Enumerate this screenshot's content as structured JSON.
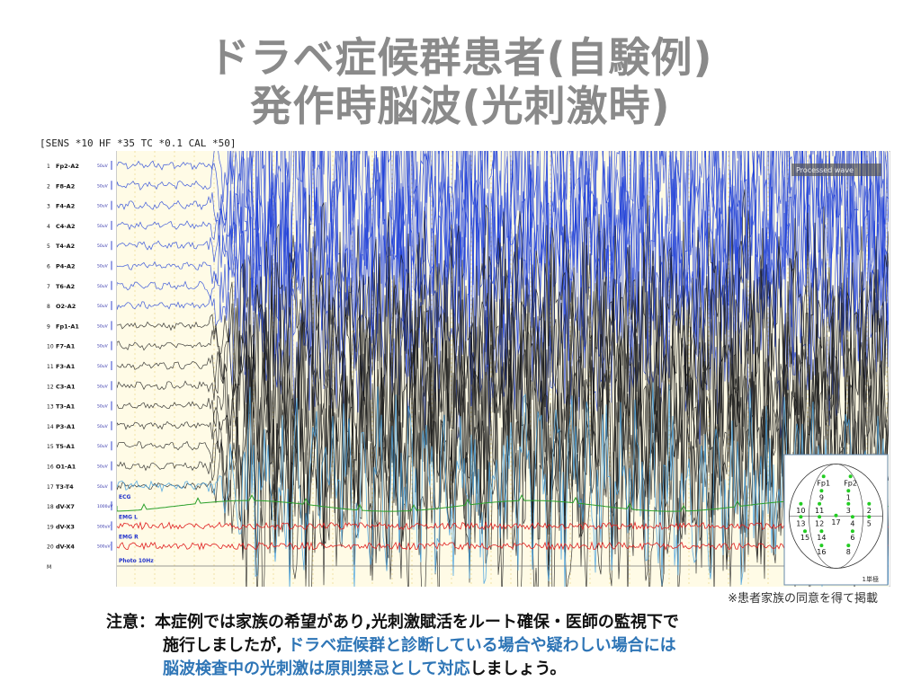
{
  "title_line1": "ドラベ症候群患者(自験例)",
  "title_line2": "発作時脳波(光刺激時)",
  "eeg": {
    "header": "[SENS *10  HF *35  TC *0.1  CAL *50]",
    "processed_label": "Processed wave",
    "channels": [
      {
        "num": "1",
        "name": "Fp2-A2",
        "scale": "50uV"
      },
      {
        "num": "2",
        "name": "F8-A2",
        "scale": "50uV"
      },
      {
        "num": "3",
        "name": "F4-A2",
        "scale": "50uV"
      },
      {
        "num": "4",
        "name": "C4-A2",
        "scale": "50uV"
      },
      {
        "num": "5",
        "name": "T4-A2",
        "scale": "50uV"
      },
      {
        "num": "6",
        "name": "P4-A2",
        "scale": "50uV"
      },
      {
        "num": "7",
        "name": "T6-A2",
        "scale": "50uV"
      },
      {
        "num": "8",
        "name": "O2-A2",
        "scale": "50uV"
      },
      {
        "num": "9",
        "name": "Fp1-A1",
        "scale": "50uV"
      },
      {
        "num": "10",
        "name": "F7-A1",
        "scale": "50uV"
      },
      {
        "num": "11",
        "name": "F3-A1",
        "scale": "50uV"
      },
      {
        "num": "12",
        "name": "C3-A1",
        "scale": "50uV"
      },
      {
        "num": "13",
        "name": "T3-A1",
        "scale": "50uV"
      },
      {
        "num": "14",
        "name": "P3-A1",
        "scale": "50uV"
      },
      {
        "num": "15",
        "name": "T5-A1",
        "scale": "50uV"
      },
      {
        "num": "16",
        "name": "O1-A1",
        "scale": "50uV"
      },
      {
        "num": "17",
        "name": "T3-T4",
        "scale": "50uV"
      },
      {
        "num": "18",
        "name": "dV-X7",
        "scale": "1000uV"
      },
      {
        "num": "19",
        "name": "dV-X3",
        "scale": "500uV"
      },
      {
        "num": "20",
        "name": "dV-X4",
        "scale": "500uV"
      },
      {
        "num": "M",
        "name": "",
        "scale": ""
      }
    ],
    "trace_labels": {
      "ecg": "ECG",
      "emg_l": "EMG L",
      "emg_r": "EMG R",
      "photic": "Photo 10Hz"
    },
    "head_map": {
      "labels": [
        "Fp1",
        "Fp2",
        "9",
        "1",
        "10",
        "11",
        "3",
        "2",
        "13",
        "12",
        "17",
        "4",
        "5",
        "15",
        "14",
        "6",
        "16",
        "8"
      ],
      "scale_label": "1単極"
    }
  },
  "consent_note": "※患者家族の同意を得て掲載",
  "note": {
    "line1": "注意：本症例では家族の希望があり,光刺激賦活をルート確保・医師の監視下で",
    "line2_plain": "施行しましたが, ",
    "line2_blue": "ドラベ症候群と診断している場合や疑わしい場合には",
    "line3_blue": "脳波検査中の光刺激は原則禁忌として対応",
    "line3_plain": "しましょう。"
  },
  "colors": {
    "title": "#8a8a8a",
    "blue_trace": "#1f3fd8",
    "black_trace": "#1a1a1a",
    "light_blue_trace": "#4aa3df",
    "red_trace": "#e02020",
    "green_trace": "#2aa02a",
    "note_blue": "#2e75b6",
    "background_band": "#fffbe0"
  }
}
